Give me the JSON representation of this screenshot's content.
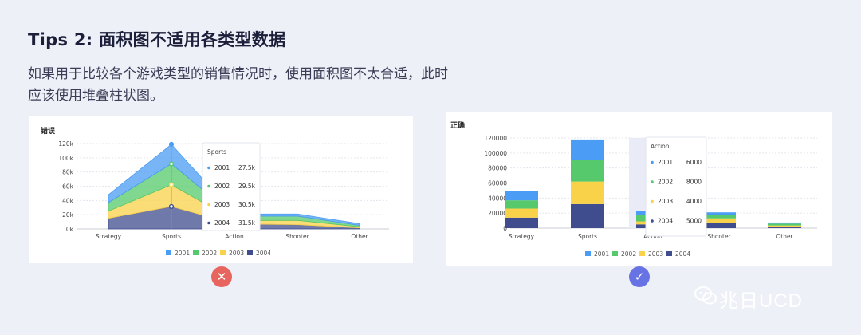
{
  "title": "Tips 2: 面积图不适用各类型数据",
  "description": "如果用于比较各个游戏类型的销售情况时，使用面积图不太合适，此时应该使用堆叠柱状图。",
  "colors": {
    "2001": "#4a9cf4",
    "2002": "#55c96b",
    "2003": "#fad24a",
    "2004": "#3f4c8e"
  },
  "wrong_mark": "✕",
  "right_mark": "✓",
  "brand": "兆日UCD",
  "chart_data": [
    {
      "panel_label": "错误",
      "type": "area",
      "stacked": true,
      "categories": [
        "Strategy",
        "Sports",
        "Action",
        "Shooter",
        "Other"
      ],
      "yticks": [
        "0k",
        "20k",
        "40k",
        "60k",
        "80k",
        "100k",
        "120k"
      ],
      "ylim": [
        0,
        120000
      ],
      "grid": true,
      "legend": "bottom",
      "series": [
        {
          "name": "2004",
          "values": [
            15000,
            31500,
            7000,
            6000,
            1500
          ]
        },
        {
          "name": "2003",
          "values": [
            10000,
            30500,
            5000,
            6000,
            1500
          ]
        },
        {
          "name": "2002",
          "values": [
            12000,
            29500,
            6000,
            6000,
            2000
          ]
        },
        {
          "name": "2001",
          "values": [
            11000,
            27500,
            3000,
            3000,
            2500
          ]
        }
      ],
      "tooltip": {
        "title": "Sports",
        "category": "Sports",
        "items": [
          {
            "name": "2001",
            "value": "27.5k"
          },
          {
            "name": "2002",
            "value": "29.5k"
          },
          {
            "name": "2003",
            "value": "30.5k"
          },
          {
            "name": "2004",
            "value": "31.5k"
          }
        ]
      },
      "legend_items": [
        "2001",
        "2002",
        "2003",
        "2004"
      ]
    },
    {
      "panel_label": "正确",
      "type": "bar",
      "stacked": true,
      "categories": [
        "Strategy",
        "Sports",
        "Action",
        "Shooter",
        "Other"
      ],
      "yticks": [
        "0",
        "20000",
        "40000",
        "60000",
        "80000",
        "100000",
        "120000"
      ],
      "ylim": [
        0,
        120000
      ],
      "grid": true,
      "legend": "bottom",
      "series": [
        {
          "name": "2004",
          "values": [
            14000,
            32000,
            5000,
            7000,
            2000
          ]
        },
        {
          "name": "2003",
          "values": [
            12000,
            30000,
            4000,
            6000,
            1500
          ]
        },
        {
          "name": "2002",
          "values": [
            11000,
            29000,
            8000,
            4000,
            2500
          ]
        },
        {
          "name": "2001",
          "values": [
            12000,
            27000,
            6000,
            4000,
            1500
          ]
        }
      ],
      "highlight_category": "Action",
      "tooltip": {
        "title": "Action",
        "category": "Action",
        "items": [
          {
            "name": "2001",
            "value": "6000"
          },
          {
            "name": "2002",
            "value": "8000"
          },
          {
            "name": "2003",
            "value": "4000"
          },
          {
            "name": "2004",
            "value": "5000"
          }
        ]
      },
      "legend_items": [
        "2001",
        "2002",
        "2003",
        "2004"
      ]
    }
  ]
}
